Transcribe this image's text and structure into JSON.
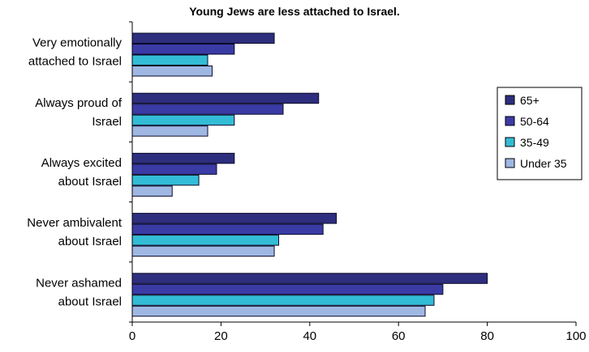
{
  "chart_data": {
    "type": "bar",
    "orientation": "horizontal",
    "title": "Young Jews are less attached to Israel.",
    "xlabel": "",
    "ylabel": "",
    "xlim": [
      0,
      100
    ],
    "x_ticks": [
      "0",
      "20",
      "40",
      "60",
      "80",
      "100"
    ],
    "grid": false,
    "legend_position": "right",
    "categories": [
      [
        "Very emotionally",
        "attached to Israel"
      ],
      [
        "Always proud of",
        "Israel"
      ],
      [
        "Always excited",
        "about Israel"
      ],
      [
        "Never ambivalent",
        "about Israel"
      ],
      [
        "Never ashamed",
        "about Israel"
      ]
    ],
    "series": [
      {
        "name": "65+",
        "color": "#2e2e7e",
        "values": [
          32,
          42,
          23,
          46,
          80
        ]
      },
      {
        "name": "50-64",
        "color": "#3b3ba6",
        "values": [
          23,
          34,
          19,
          43,
          70
        ]
      },
      {
        "name": "35-49",
        "color": "#33bcd6",
        "values": [
          17,
          23,
          15,
          33,
          68
        ]
      },
      {
        "name": "Under 35",
        "color": "#9fb7e3",
        "values": [
          18,
          17,
          9,
          32,
          66
        ]
      }
    ]
  }
}
